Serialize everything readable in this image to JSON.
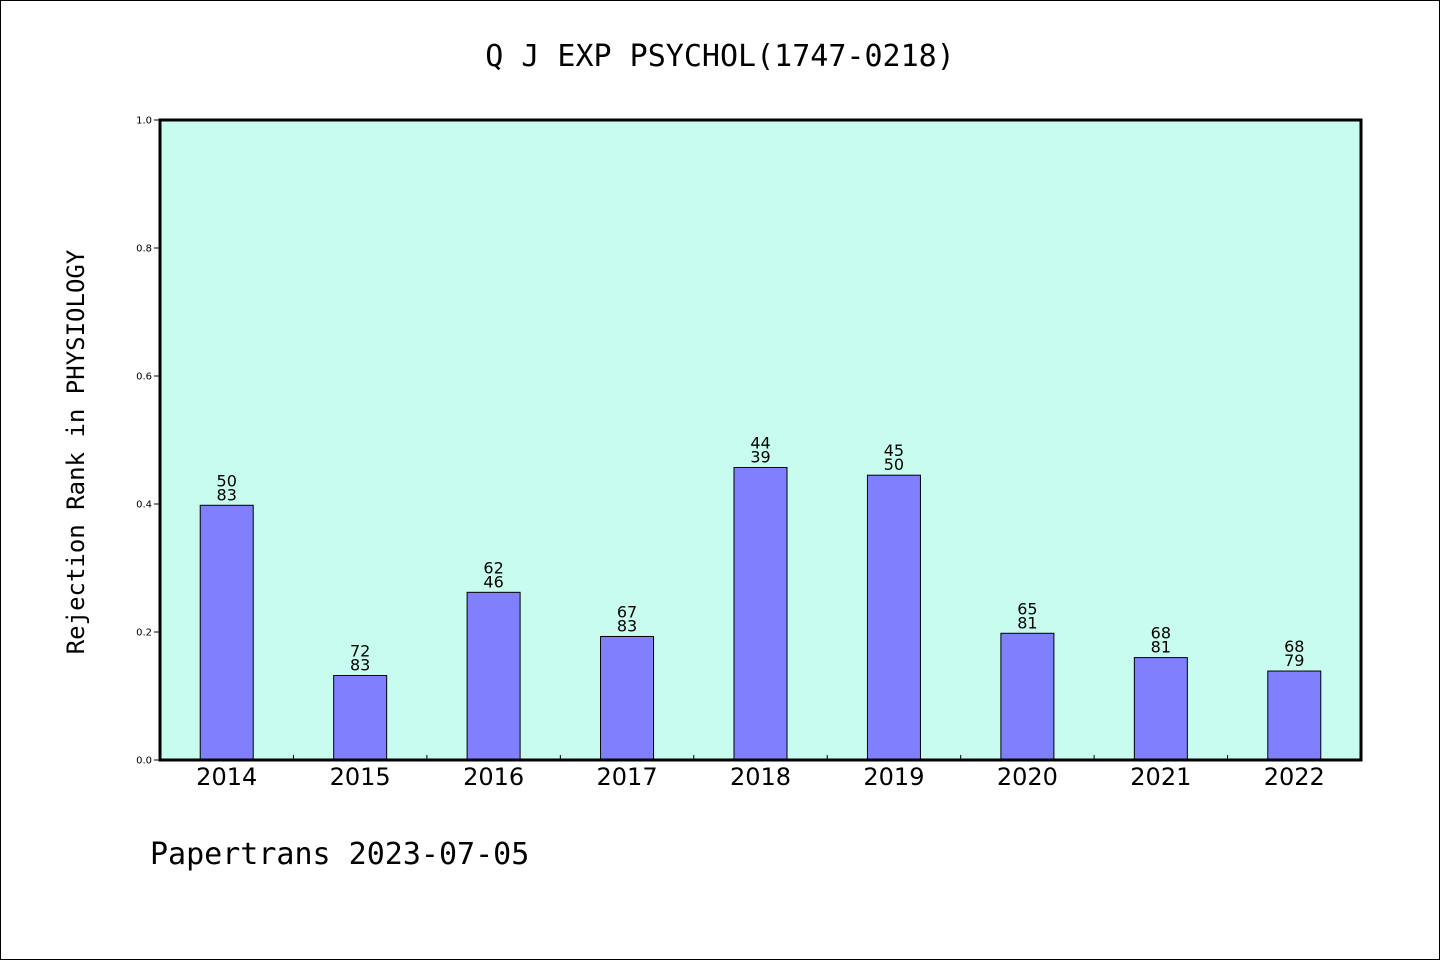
{
  "chart_data": {
    "type": "bar",
    "title": "Q J EXP PSYCHOL(1747-0218)",
    "xlabel": "",
    "ylabel": "Rejection Rank in PHYSIOLOGY",
    "ylim": [
      0,
      1.0
    ],
    "yticks": [
      "0.0",
      "0.2",
      "0.4",
      "0.6",
      "0.8",
      "1.0"
    ],
    "grid": false,
    "categories": [
      "2014",
      "2015",
      "2016",
      "2017",
      "2018",
      "2019",
      "2020",
      "2021",
      "2022"
    ],
    "values": [
      0.398,
      0.132,
      0.262,
      0.193,
      0.457,
      0.445,
      0.198,
      0.16,
      0.139
    ],
    "labels_top": [
      "50",
      "72",
      "62",
      "67",
      "44",
      "45",
      "65",
      "68",
      "68"
    ],
    "labels_bottom": [
      "83",
      "83",
      "46",
      "83",
      "39",
      "50",
      "81",
      "81",
      "79"
    ],
    "colors": {
      "plot_background": "#c8fcee",
      "bar_fill": "#8080ff",
      "bar_stroke": "#000000"
    }
  },
  "footer": {
    "text": "Papertrans 2023-07-05"
  }
}
